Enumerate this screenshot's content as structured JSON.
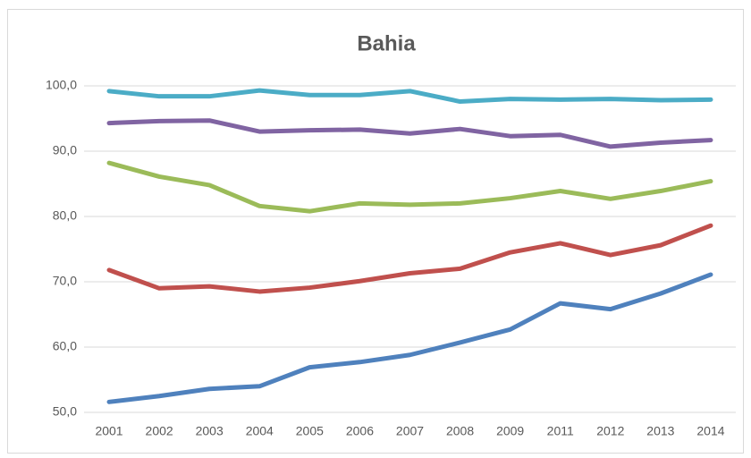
{
  "chart_data": {
    "type": "line",
    "title": "Bahia",
    "categories": [
      "2001",
      "2002",
      "2003",
      "2004",
      "2005",
      "2006",
      "2007",
      "2008",
      "2009",
      "2011",
      "2012",
      "2013",
      "2014"
    ],
    "series": [
      {
        "color": "#4f81bd",
        "values": [
          51.6,
          52.5,
          53.6,
          54.0,
          56.9,
          57.7,
          58.8,
          60.7,
          62.7,
          66.7,
          65.8,
          68.2,
          71.1
        ]
      },
      {
        "color": "#c0504d",
        "values": [
          71.8,
          69.0,
          69.3,
          68.5,
          69.1,
          70.1,
          71.3,
          72.0,
          74.5,
          75.9,
          74.1,
          75.6,
          78.6
        ]
      },
      {
        "color": "#9bbb59",
        "values": [
          88.2,
          86.1,
          84.8,
          81.6,
          80.8,
          82.0,
          81.8,
          82.0,
          82.8,
          83.9,
          82.7,
          83.9,
          85.4
        ]
      },
      {
        "color": "#8064a2",
        "values": [
          94.3,
          94.6,
          94.7,
          93.0,
          93.2,
          93.3,
          92.7,
          93.4,
          92.3,
          92.5,
          90.7,
          91.3,
          91.7
        ]
      },
      {
        "color": "#4bacc6",
        "values": [
          99.2,
          98.4,
          98.4,
          99.3,
          98.6,
          98.6,
          99.2,
          97.6,
          98.0,
          97.9,
          98.0,
          97.8,
          97.9
        ]
      }
    ],
    "ylim": [
      50,
      100
    ],
    "yticks": [
      {
        "value": 50,
        "label": "50,0"
      },
      {
        "value": 60,
        "label": "60,0"
      },
      {
        "value": 70,
        "label": "70,0"
      },
      {
        "value": 80,
        "label": "80,0"
      },
      {
        "value": 90,
        "label": "90,0"
      },
      {
        "value": 100,
        "label": "100,0"
      }
    ],
    "grid": true
  }
}
